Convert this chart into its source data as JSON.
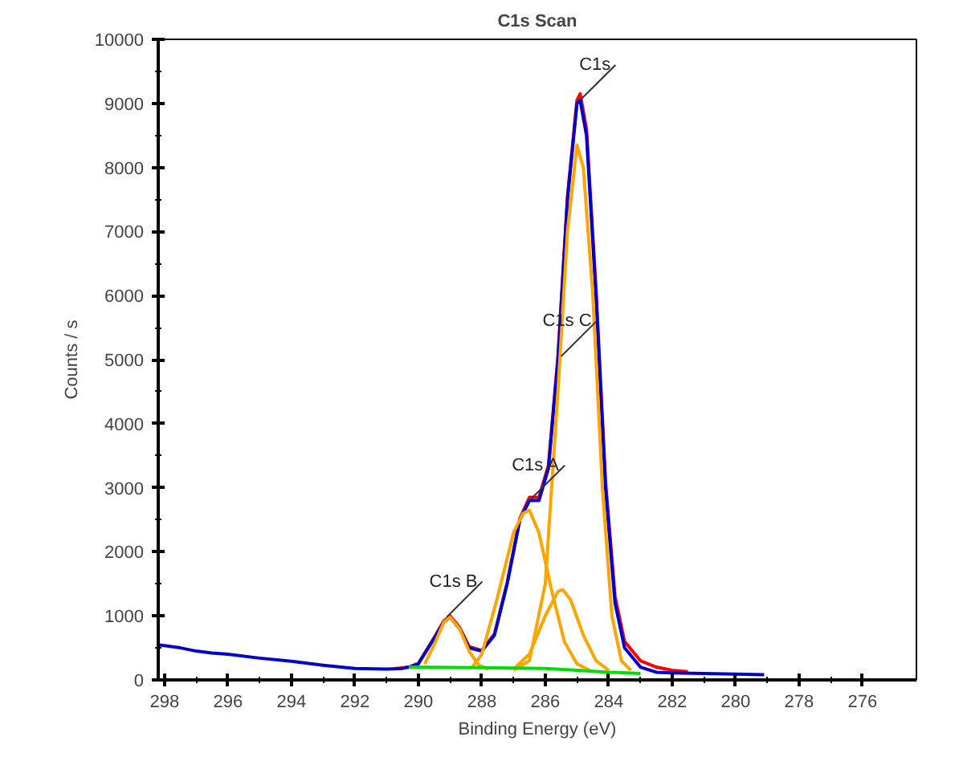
{
  "chart_data": {
    "type": "line",
    "title": "C1s Scan",
    "xlabel": "Binding Energy (eV)",
    "ylabel": "Counts / s",
    "xlim": [
      298.2,
      274.3
    ],
    "ylim": [
      0,
      10000
    ],
    "xticks": [
      298,
      296,
      294,
      292,
      290,
      288,
      286,
      284,
      282,
      280,
      278,
      276
    ],
    "yticks": [
      0,
      1000,
      2000,
      3000,
      4000,
      5000,
      6000,
      7000,
      8000,
      9000,
      10000
    ],
    "grid": false,
    "marker": "none",
    "line_style": "solid",
    "series": [
      {
        "color": "#ff0000",
        "x": [
          290.7,
          290.3,
          290,
          289.5,
          289.2,
          289,
          288.7,
          288.4,
          288,
          287.6,
          287.2,
          286.8,
          286.5,
          286.2,
          285.9,
          285.6,
          285.3,
          285,
          284.9,
          284.7,
          284.4,
          284.1,
          283.8,
          283.5,
          283,
          282.5,
          282,
          281.5
        ],
        "values": [
          180,
          200,
          260,
          660,
          920,
          1000,
          820,
          520,
          460,
          720,
          1520,
          2520,
          2850,
          2850,
          3350,
          5050,
          7550,
          9050,
          9150,
          8600,
          6100,
          3100,
          1300,
          600,
          300,
          200,
          150,
          130
        ]
      },
      {
        "color": "#0000cc",
        "x": [
          298.2,
          297.5,
          297,
          296.5,
          296,
          295,
          294,
          293,
          292,
          291,
          290.5,
          290.3,
          290,
          289.5,
          289.2,
          289,
          288.7,
          288.4,
          288,
          287.6,
          287.2,
          286.8,
          286.5,
          286.2,
          285.9,
          285.6,
          285.3,
          285,
          284.9,
          284.7,
          284.4,
          284.1,
          283.8,
          283.5,
          283,
          282.5,
          282,
          281,
          280,
          279.1
        ],
        "values": [
          550,
          500,
          450,
          420,
          400,
          340,
          290,
          230,
          180,
          170,
          180,
          200,
          250,
          650,
          900,
          980,
          800,
          500,
          450,
          700,
          1500,
          2500,
          2800,
          2800,
          3300,
          5000,
          7500,
          9000,
          9050,
          8500,
          6000,
          3000,
          1200,
          500,
          200,
          120,
          110,
          100,
          90,
          80
        ]
      },
      {
        "color": "#ffa500",
        "x": [
          287,
          286.5,
          286,
          285.6,
          285.3,
          285,
          284.8,
          284.5,
          284.2,
          283.9,
          283.6,
          283.3
        ],
        "values": [
          150,
          300,
          1500,
          4500,
          7000,
          8350,
          8000,
          6000,
          3000,
          1000,
          300,
          150
        ]
      },
      {
        "color": "#ffa500",
        "x": [
          287,
          286.5,
          286,
          285.6,
          285.45,
          285.2,
          284.8,
          284.4,
          284
        ],
        "values": [
          170,
          400,
          1000,
          1380,
          1410,
          1250,
          700,
          300,
          150
        ]
      },
      {
        "color": "#ffa500",
        "x": [
          288.3,
          288,
          287.5,
          287,
          286.7,
          286.5,
          286.2,
          285.8,
          285.4,
          285,
          284.6
        ],
        "values": [
          200,
          400,
          1300,
          2300,
          2600,
          2650,
          2300,
          1400,
          600,
          250,
          150
        ]
      },
      {
        "color": "#ffa500",
        "x": [
          289.8,
          289.5,
          289.2,
          289,
          288.7,
          288.4,
          288.1,
          287.8
        ],
        "values": [
          250,
          550,
          900,
          980,
          800,
          450,
          230,
          170
        ]
      },
      {
        "color": "#00dd00",
        "x": [
          290.3,
          288,
          286,
          285,
          284,
          283
        ],
        "values": [
          200,
          190,
          180,
          150,
          120,
          100
        ]
      }
    ],
    "annotations": [
      {
        "text": "C1s",
        "x": 284.9,
        "y": 9050
      },
      {
        "text": "C1s C",
        "x": 285.5,
        "y": 5050
      },
      {
        "text": "C1s A",
        "x": 286.5,
        "y": 2800
      },
      {
        "text": "C1s B",
        "x": 289.1,
        "y": 985
      }
    ]
  }
}
